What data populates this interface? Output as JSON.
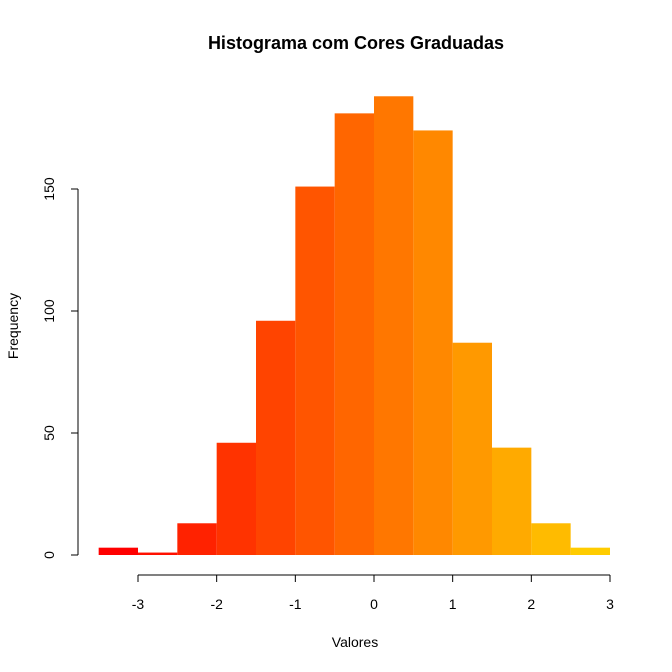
{
  "chart_data": {
    "type": "bar",
    "title": "Histograma com Cores Graduadas",
    "xlabel": "Valores",
    "ylabel": "Frequency",
    "bin_edges": [
      -3.5,
      -3,
      -2.5,
      -2,
      -1.5,
      -1,
      -0.5,
      0,
      0.5,
      1,
      1.5,
      2,
      2.5,
      3
    ],
    "values": [
      3,
      1,
      13,
      46,
      96,
      151,
      181,
      188,
      174,
      87,
      44,
      13,
      3
    ],
    "colors": [
      "#FF0000",
      "#FF1000",
      "#FF2200",
      "#FF3300",
      "#FF4400",
      "#FF5500",
      "#FF6600",
      "#FF7700",
      "#FF8800",
      "#FF9900",
      "#FFAA00",
      "#FFBB00",
      "#FFCC00"
    ],
    "xlim": [
      -3.5,
      3
    ],
    "ylim": [
      0,
      190
    ],
    "x_ticks": [
      -3,
      -2,
      -1,
      0,
      1,
      2,
      3
    ],
    "x_tick_labels": [
      "-3",
      "-2",
      "-1",
      "0",
      "1",
      "2",
      "3"
    ],
    "y_ticks": [
      0,
      50,
      100,
      150
    ],
    "y_tick_labels": [
      "0",
      "50",
      "100",
      "150"
    ],
    "grid": false
  }
}
